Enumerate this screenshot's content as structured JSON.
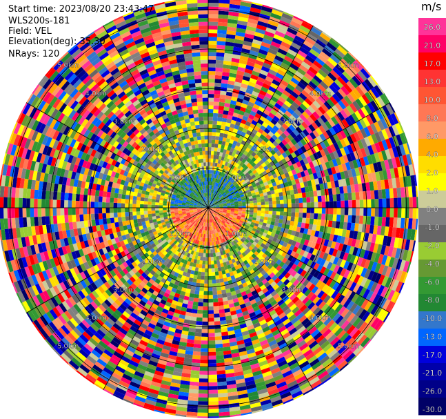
{
  "header": {
    "start_time": "Start time: 2023/08/20 23:43:47",
    "instrument": "WLS200s-181",
    "field": "Field: VEL",
    "elevation": "Elevation(deg): 35.30",
    "nrays": "NRays: 120"
  },
  "plot": {
    "range_ring_labels": [
      "1.0km",
      "2.0km",
      "3.0km",
      "4.0km",
      "5.0km"
    ],
    "range_rings_km": [
      1,
      2,
      3,
      4,
      5
    ],
    "max_range_km": 5.3,
    "n_rays": 120
  },
  "colorbar": {
    "unit": "m/s",
    "ticks": [
      "26.0",
      "21.0",
      "17.0",
      "13.0",
      "10.0",
      "8.0",
      "6.0",
      "4.0",
      "2.0",
      "1.0",
      "0.0",
      "-1.0",
      "-2.0",
      "-4.0",
      "-6.0",
      "-8.0",
      "-10.0",
      "-13.0",
      "-17.0",
      "-21.0",
      "-26.0",
      "-30.0"
    ],
    "colors": [
      "#ff3399",
      "#ff0066",
      "#ff0000",
      "#ff3333",
      "#ff5533",
      "#ff7755",
      "#ff9966",
      "#ffaa00",
      "#ffdd00",
      "#ffff00",
      "#cccc99",
      "#808080",
      "#666666",
      "#99cc33",
      "#669933",
      "#339933",
      "#228833",
      "#3377cc",
      "#0066ff",
      "#0000dd",
      "#0000aa",
      "#000088",
      "#000066"
    ]
  }
}
